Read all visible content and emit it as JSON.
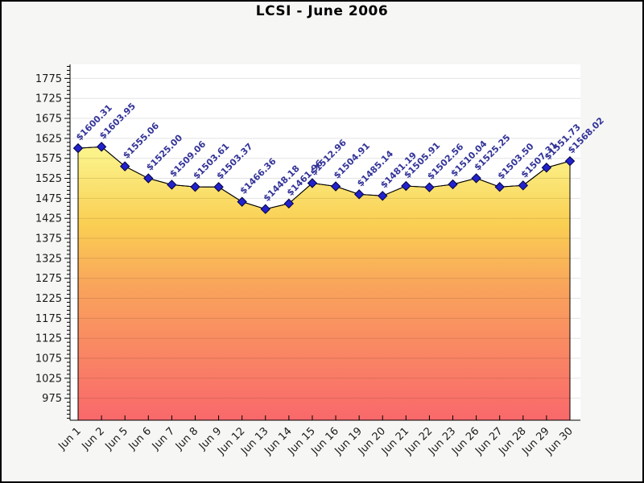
{
  "chart_data": {
    "type": "area",
    "title": "LCSI - June 2006",
    "categories": [
      "Jun 1",
      "Jun 2",
      "Jun 5",
      "Jun 6",
      "Jun 7",
      "Jun 8",
      "Jun 9",
      "Jun 12",
      "Jun 13",
      "Jun 14",
      "Jun 15",
      "Jun 16",
      "Jun 19",
      "Jun 20",
      "Jun 21",
      "Jun 22",
      "Jun 23",
      "Jun 26",
      "Jun 27",
      "Jun 28",
      "Jun 29",
      "Jun 30"
    ],
    "values": [
      1600.31,
      1603.95,
      1555.06,
      1525.0,
      1509.06,
      1503.61,
      1503.37,
      1466.36,
      1448.18,
      1461.96,
      1512.96,
      1504.91,
      1485.14,
      1481.19,
      1505.91,
      1502.56,
      1510.04,
      1525.25,
      1503.5,
      1507.31,
      1551.73,
      1568.02
    ],
    "point_labels": [
      "$1600.31",
      "$1603.95",
      "$1555.06",
      "$1525.00",
      "$1509.06",
      "$1503.61",
      "$1503.37",
      "$1466.36",
      "$1448.18",
      "$1461.96",
      "$1512.96",
      "$1504.91",
      "$1485.14",
      "$1481.19",
      "$1505.91",
      "$1502.56",
      "$1510.04",
      "$1525.25",
      "$1503.50",
      "$1507.31",
      "$1551.73",
      "$1568.02"
    ],
    "xlabel": "",
    "ylabel": "",
    "ylim": [
      920,
      1810
    ],
    "y_ticks": [
      975,
      1025,
      1075,
      1125,
      1175,
      1225,
      1275,
      1325,
      1375,
      1425,
      1475,
      1525,
      1575,
      1625,
      1675,
      1725,
      1775
    ],
    "y_minor_tick_step": 10,
    "grid": true,
    "legend": "none",
    "marker": "diamond",
    "colors": {
      "page_bg": "#F6F6F5",
      "plot_bg": "#FFFFFF",
      "grid_line": "rgba(0,0,0,0.11)",
      "axis": "#000000",
      "line": "#000000",
      "marker_fill": "#2222CC",
      "marker_stroke": "#000040",
      "point_label": "#333399",
      "tick_label": "#1a1a1a",
      "area_gradient": [
        {
          "offset": 0.0,
          "color": "#FFFFA8"
        },
        {
          "offset": 0.25,
          "color": "#FBF28A"
        },
        {
          "offset": 0.45,
          "color": "#FACF52"
        },
        {
          "offset": 0.63,
          "color": "#F9A35C"
        },
        {
          "offset": 1.0,
          "color": "#F9686B"
        }
      ]
    }
  }
}
